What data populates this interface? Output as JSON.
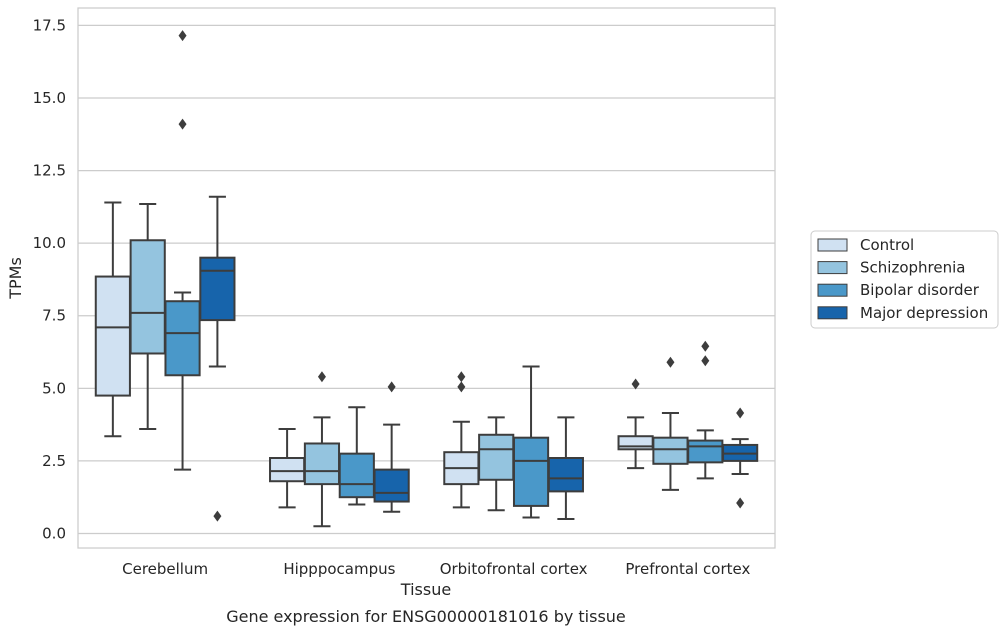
{
  "chart_data": {
    "type": "box",
    "caption": "Gene expression for ENSG00000181016 by tissue",
    "xlabel": "Tissue",
    "ylabel": "TPMs",
    "ylim": [
      -0.5,
      18.1
    ],
    "yticks": [
      0.0,
      2.5,
      5.0,
      7.5,
      10.0,
      12.5,
      15.0,
      17.5
    ],
    "ytick_labels": [
      "0.0",
      "2.5",
      "5.0",
      "7.5",
      "10.0",
      "12.5",
      "15.0",
      "17.5"
    ],
    "grid": "horizontal",
    "legend_position": "right",
    "categories": [
      "Cerebellum",
      "Hipppocampus",
      "Orbitofrontal cortex",
      "Prefrontal cortex"
    ],
    "series": [
      {
        "name": "Control",
        "color": "#d0e1f2",
        "boxes": [
          {
            "whislo": 3.35,
            "q1": 4.75,
            "med": 7.1,
            "q3": 8.85,
            "whishi": 11.4,
            "fliers": []
          },
          {
            "whislo": 0.9,
            "q1": 1.8,
            "med": 2.15,
            "q3": 2.6,
            "whishi": 3.6,
            "fliers": []
          },
          {
            "whislo": 0.9,
            "q1": 1.7,
            "med": 2.25,
            "q3": 2.8,
            "whishi": 3.85,
            "fliers": [
              5.05,
              5.4
            ]
          },
          {
            "whislo": 2.25,
            "q1": 2.9,
            "med": 3.0,
            "q3": 3.35,
            "whishi": 4.0,
            "fliers": [
              5.15
            ]
          }
        ]
      },
      {
        "name": "Schizophrenia",
        "color": "#94c4df",
        "boxes": [
          {
            "whislo": 3.6,
            "q1": 6.2,
            "med": 7.6,
            "q3": 10.1,
            "whishi": 11.35,
            "fliers": []
          },
          {
            "whislo": 0.25,
            "q1": 1.7,
            "med": 2.15,
            "q3": 3.1,
            "whishi": 4.0,
            "fliers": [
              5.4
            ]
          },
          {
            "whislo": 0.8,
            "q1": 1.85,
            "med": 2.9,
            "q3": 3.4,
            "whishi": 4.0,
            "fliers": []
          },
          {
            "whislo": 1.5,
            "q1": 2.4,
            "med": 2.9,
            "q3": 3.3,
            "whishi": 4.15,
            "fliers": [
              5.9
            ]
          }
        ]
      },
      {
        "name": "Bipolar disorder",
        "color": "#4a98c9",
        "boxes": [
          {
            "whislo": 2.2,
            "q1": 5.45,
            "med": 6.9,
            "q3": 8.0,
            "whishi": 8.3,
            "fliers": [
              14.1,
              17.15
            ]
          },
          {
            "whislo": 1.0,
            "q1": 1.25,
            "med": 1.7,
            "q3": 2.75,
            "whishi": 4.35,
            "fliers": []
          },
          {
            "whislo": 0.55,
            "q1": 0.95,
            "med": 2.5,
            "q3": 3.3,
            "whishi": 5.75,
            "fliers": []
          },
          {
            "whislo": 1.9,
            "q1": 2.45,
            "med": 3.0,
            "q3": 3.2,
            "whishi": 3.55,
            "fliers": [
              5.95,
              6.45
            ]
          }
        ]
      },
      {
        "name": "Major depression",
        "color": "#1764ab",
        "boxes": [
          {
            "whislo": 5.75,
            "q1": 7.35,
            "med": 9.05,
            "q3": 9.5,
            "whishi": 11.6,
            "fliers": [
              0.6
            ]
          },
          {
            "whislo": 0.75,
            "q1": 1.1,
            "med": 1.4,
            "q3": 2.2,
            "whishi": 3.75,
            "fliers": [
              5.05
            ]
          },
          {
            "whislo": 0.5,
            "q1": 1.45,
            "med": 1.9,
            "q3": 2.6,
            "whishi": 4.0,
            "fliers": []
          },
          {
            "whislo": 2.05,
            "q1": 2.5,
            "med": 2.75,
            "q3": 3.05,
            "whishi": 3.25,
            "fliers": [
              1.05,
              4.15
            ]
          }
        ]
      }
    ]
  }
}
